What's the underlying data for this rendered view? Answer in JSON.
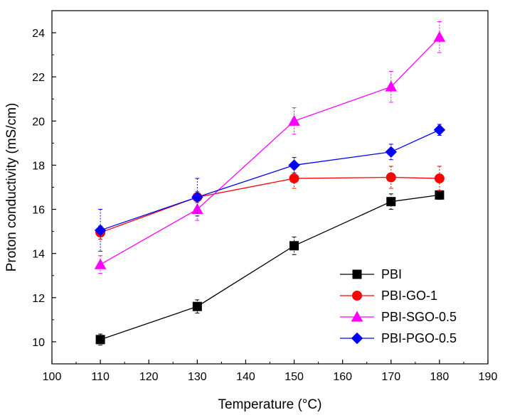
{
  "chart_data": {
    "type": "line",
    "title": "",
    "xlabel": "Temperature (°C)",
    "ylabel": "Proton conductivity (mS/cm)",
    "xlim": [
      100,
      190
    ],
    "ylim": [
      9,
      25
    ],
    "x_ticks": [
      100,
      110,
      120,
      130,
      140,
      150,
      160,
      170,
      180,
      190
    ],
    "y_ticks": [
      10,
      12,
      14,
      16,
      18,
      20,
      22,
      24
    ],
    "grid": false,
    "legend_position": "bottom-right",
    "x": [
      110,
      130,
      150,
      170,
      180
    ],
    "series": [
      {
        "name": "PBI",
        "color": "#000000",
        "marker": "square",
        "values": [
          10.1,
          11.6,
          14.35,
          16.35,
          16.65
        ],
        "error": [
          0.25,
          0.3,
          0.4,
          0.35,
          0.2
        ]
      },
      {
        "name": "PBI-GO-1",
        "color": "#ff0000",
        "marker": "circle",
        "values": [
          14.95,
          16.55,
          17.4,
          17.45,
          17.4
        ],
        "error": [
          0.3,
          0.25,
          0.45,
          0.5,
          0.55
        ]
      },
      {
        "name": "PBI-SGO-0.5",
        "color": "#ff00ff",
        "marker": "triangle",
        "values": [
          13.5,
          16.0,
          20.0,
          21.55,
          23.8
        ],
        "error": [
          0.4,
          0.5,
          0.6,
          0.7,
          0.7
        ]
      },
      {
        "name": "PBI-PGO-0.5",
        "color": "#0000ff",
        "marker": "diamond",
        "values": [
          15.05,
          16.55,
          18.0,
          18.6,
          19.6
        ],
        "error": [
          0.95,
          0.85,
          0.35,
          0.35,
          0.25
        ]
      }
    ]
  }
}
